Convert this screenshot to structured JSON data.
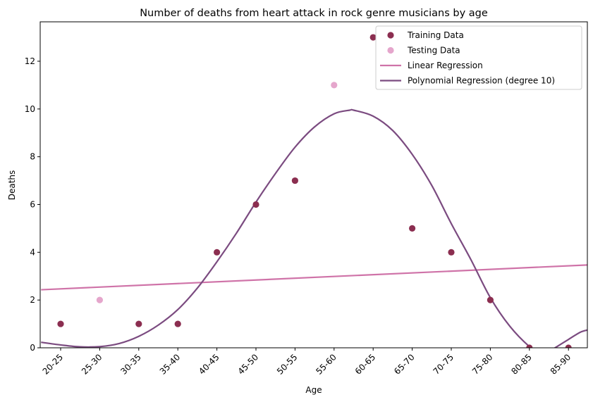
{
  "chart_data": {
    "type": "scatter",
    "title": "Number of deaths from heart attack in rock genre musicians by age",
    "xlabel": "Age",
    "ylabel": "Deaths",
    "categories": [
      "20-25",
      "25-30",
      "30-35",
      "35-40",
      "40-45",
      "45-50",
      "50-55",
      "55-60",
      "60-65",
      "65-70",
      "70-75",
      "75-80",
      "80-85",
      "85-90"
    ],
    "ylim": [
      0,
      13.65
    ],
    "yticks": [
      0,
      2,
      4,
      6,
      8,
      10,
      12
    ],
    "grid": false,
    "legend_position": "top-right",
    "series": [
      {
        "name": "Training Data",
        "kind": "points",
        "color": "#8b2e50",
        "points": [
          {
            "x": "20-25",
            "y": 1
          },
          {
            "x": "30-35",
            "y": 1
          },
          {
            "x": "35-40",
            "y": 1
          },
          {
            "x": "40-45",
            "y": 4
          },
          {
            "x": "45-50",
            "y": 6
          },
          {
            "x": "50-55",
            "y": 7
          },
          {
            "x": "60-65",
            "y": 13
          },
          {
            "x": "65-70",
            "y": 5
          },
          {
            "x": "70-75",
            "y": 4
          },
          {
            "x": "75-80",
            "y": 2
          },
          {
            "x": "80-85",
            "y": 0
          },
          {
            "x": "85-90",
            "y": 0
          }
        ]
      },
      {
        "name": "Testing Data",
        "kind": "points",
        "color": "#e5a6cc",
        "points": [
          {
            "x": "25-30",
            "y": 2
          },
          {
            "x": "55-60",
            "y": 11
          }
        ]
      },
      {
        "name": "Linear Regression",
        "kind": "line",
        "color": "#cf73a8",
        "x": [
          -0.5,
          13.5
        ],
        "y": [
          2.43,
          3.47
        ]
      },
      {
        "name": "Polynomial Regression (degree 10)",
        "kind": "line",
        "color": "#7b4b80",
        "x": [
          -0.5,
          0,
          0.5,
          1.0,
          1.5,
          2.0,
          2.5,
          3.0,
          3.5,
          4.0,
          4.5,
          5.0,
          5.5,
          6.0,
          6.5,
          7.0,
          7.4,
          7.5,
          8.0,
          8.5,
          9.0,
          9.5,
          10.0,
          10.5,
          11.0,
          11.5,
          12.0,
          12.3,
          12.5,
          13.0,
          13.3,
          13.5
        ],
        "y": [
          0.23,
          0.12,
          0.04,
          0.05,
          0.18,
          0.48,
          0.95,
          1.6,
          2.5,
          3.6,
          4.8,
          6.1,
          7.3,
          8.4,
          9.25,
          9.8,
          9.95,
          9.95,
          9.7,
          9.1,
          8.1,
          6.8,
          5.2,
          3.7,
          2.1,
          0.9,
          0.05,
          -0.25,
          -0.15,
          0.35,
          0.65,
          0.75
        ]
      }
    ]
  }
}
